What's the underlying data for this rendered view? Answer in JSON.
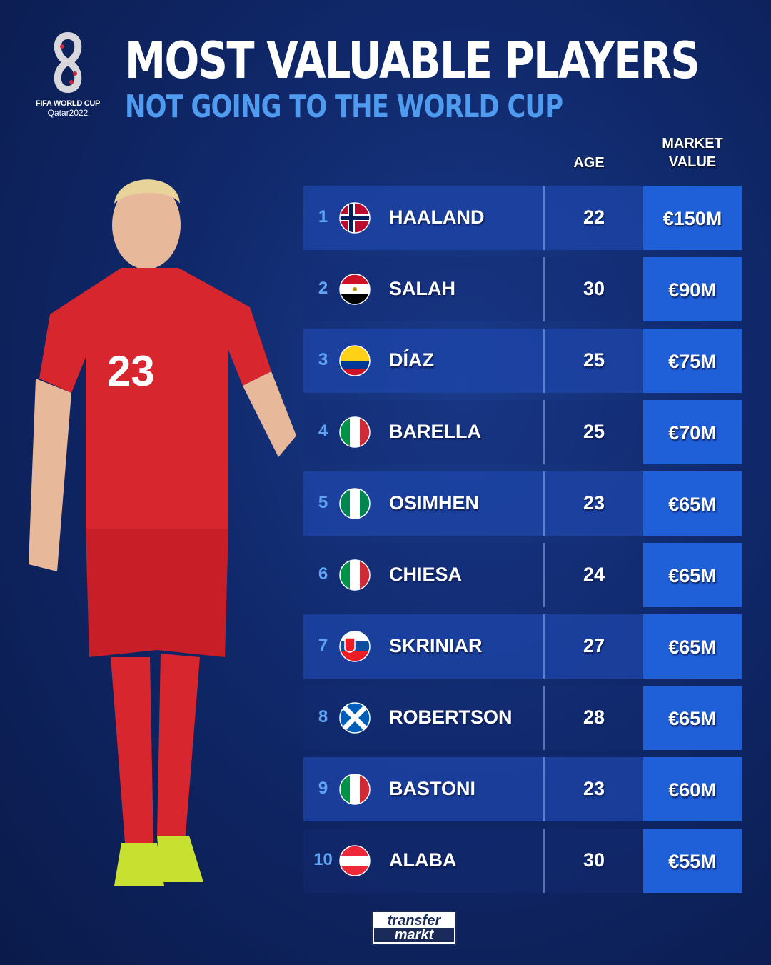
{
  "logo": {
    "line1": "FIFA WORLD CUP",
    "line2": "Qatar2022"
  },
  "header": {
    "title": "MOST VALUABLE PLAYERS",
    "subtitle": "NOT GOING TO THE WORLD CUP"
  },
  "columns": {
    "age": "AGE",
    "market_value": "MARKET VALUE"
  },
  "colors": {
    "accent": "#4f9bf0",
    "value_cell": "#1f5fd8",
    "background": "#10286a"
  },
  "rows": [
    {
      "rank": "1",
      "flag": "norway-flag",
      "name": "HAALAND",
      "age": "22",
      "value": "€150M"
    },
    {
      "rank": "2",
      "flag": "egypt-flag",
      "name": "SALAH",
      "age": "30",
      "value": "€90M"
    },
    {
      "rank": "3",
      "flag": "colombia-flag",
      "name": "DÍAZ",
      "age": "25",
      "value": "€75M"
    },
    {
      "rank": "4",
      "flag": "italy-flag",
      "name": "BARELLA",
      "age": "25",
      "value": "€70M"
    },
    {
      "rank": "5",
      "flag": "nigeria-flag",
      "name": "OSIMHEN",
      "age": "23",
      "value": "€65M"
    },
    {
      "rank": "6",
      "flag": "italy-flag",
      "name": "CHIESA",
      "age": "24",
      "value": "€65M"
    },
    {
      "rank": "7",
      "flag": "slovakia-flag",
      "name": "SKRINIAR",
      "age": "27",
      "value": "€65M"
    },
    {
      "rank": "8",
      "flag": "scotland-flag",
      "name": "ROBERTSON",
      "age": "28",
      "value": "€65M"
    },
    {
      "rank": "9",
      "flag": "italy-flag",
      "name": "BASTONI",
      "age": "23",
      "value": "€60M"
    },
    {
      "rank": "10",
      "flag": "austria-flag",
      "name": "ALABA",
      "age": "30",
      "value": "€55M"
    }
  ],
  "footer": {
    "brand_line1": "transfer",
    "brand_line2": "markt"
  }
}
